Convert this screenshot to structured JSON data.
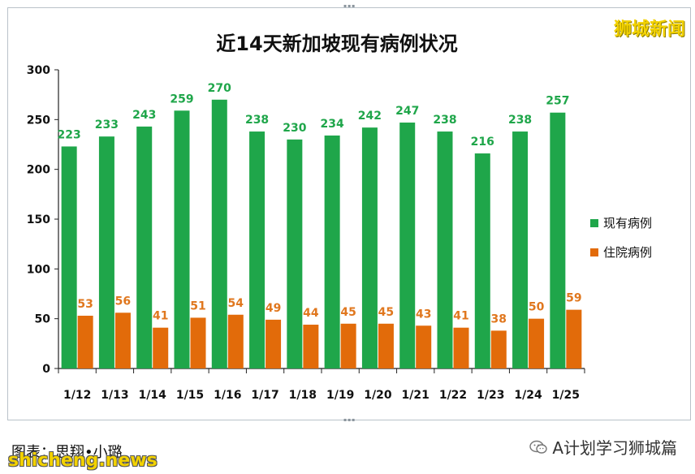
{
  "watermark_top": "狮城新闻",
  "footer": {
    "caption": "图表：思翔•小璐",
    "site": "shicheng.news",
    "account": "A计划学习狮城篇"
  },
  "colors": {
    "current": "#1fa64a",
    "hospital": "#e26b0a",
    "current_label": "#1fa64a",
    "hospital_label": "#e0771e"
  },
  "chart_data": {
    "type": "bar",
    "title": "近14天新加坡现有病例状况",
    "categories": [
      "1/12",
      "1/13",
      "1/14",
      "1/15",
      "1/16",
      "1/17",
      "1/18",
      "1/19",
      "1/20",
      "1/21",
      "1/22",
      "1/23",
      "1/24",
      "1/25"
    ],
    "series": [
      {
        "name": "现有病例",
        "values": [
          223,
          233,
          243,
          259,
          270,
          238,
          230,
          234,
          242,
          247,
          238,
          216,
          238,
          257
        ]
      },
      {
        "name": "住院病例",
        "values": [
          53,
          56,
          41,
          51,
          54,
          49,
          44,
          45,
          45,
          43,
          41,
          38,
          50,
          59
        ]
      }
    ],
    "yticks": [
      "0",
      "50",
      "100",
      "150",
      "200",
      "250",
      "300"
    ],
    "ylim": [
      0,
      300
    ],
    "grid": false,
    "legend": "right"
  }
}
